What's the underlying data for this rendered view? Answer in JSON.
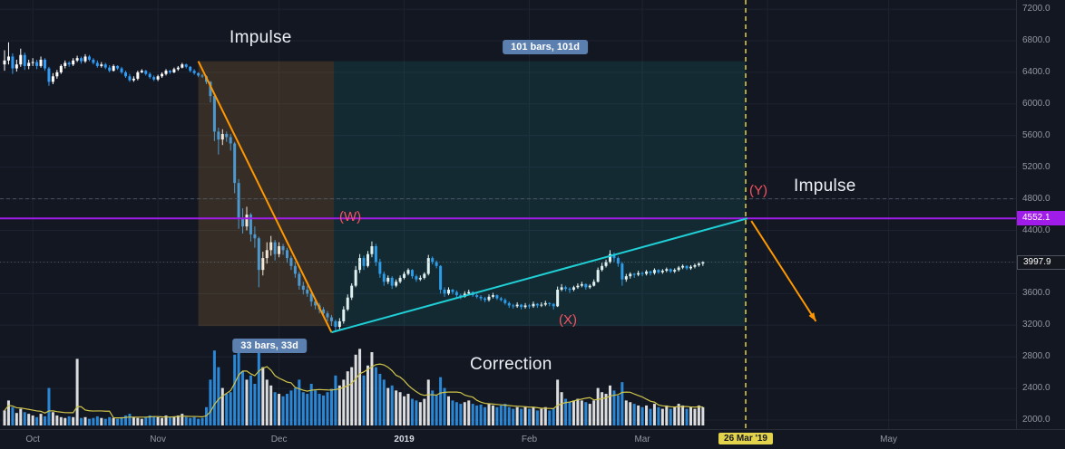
{
  "annotations": {
    "impulse_top": "Impulse",
    "impulse_right": "Impulse",
    "correction": "Correction",
    "wave_w": "(W)",
    "wave_x": "(X)",
    "wave_y": "(Y)",
    "bars_101": "101 bars, 101d",
    "bars_33": "33 bars, 33d",
    "date_marker": "26 Mar '19",
    "price_marker": "4552.1",
    "last_price": "3997.9"
  },
  "chart_data": {
    "type": "candlestick",
    "ylim": [
      2000,
      7200
    ],
    "price_ticks": [
      7200,
      6800,
      6400,
      6000,
      5600,
      5200,
      4800,
      4400,
      3600,
      3200,
      2800,
      2400,
      2000
    ],
    "time_ticks": [
      {
        "label": "Oct",
        "i": 7
      },
      {
        "label": "Nov",
        "i": 38
      },
      {
        "label": "Dec",
        "i": 68
      },
      {
        "label": "2019",
        "i": 99,
        "strong": true
      },
      {
        "label": "Feb",
        "i": 130
      },
      {
        "label": "Mar",
        "i": 158
      },
      {
        "label": "May",
        "i": 219
      }
    ],
    "time_grid_indices": [
      7,
      38,
      68,
      99,
      130,
      158,
      189,
      219
    ],
    "candles": [
      [
        6500,
        6680,
        6420,
        6550
      ],
      [
        6550,
        6780,
        6500,
        6600
      ],
      [
        6600,
        6640,
        6380,
        6450
      ],
      [
        6450,
        6560,
        6410,
        6500
      ],
      [
        6500,
        6700,
        6470,
        6620
      ],
      [
        6620,
        6650,
        6430,
        6480
      ],
      [
        6480,
        6560,
        6440,
        6520
      ],
      [
        6520,
        6580,
        6480,
        6530
      ],
      [
        6530,
        6560,
        6440,
        6480
      ],
      [
        6480,
        6600,
        6460,
        6560
      ],
      [
        6560,
        6580,
        6420,
        6450
      ],
      [
        6450,
        6470,
        6230,
        6280
      ],
      [
        6280,
        6390,
        6250,
        6350
      ],
      [
        6350,
        6430,
        6320,
        6400
      ],
      [
        6400,
        6500,
        6380,
        6480
      ],
      [
        6480,
        6550,
        6450,
        6520
      ],
      [
        6520,
        6540,
        6470,
        6500
      ],
      [
        6500,
        6580,
        6480,
        6550
      ],
      [
        6550,
        6610,
        6530,
        6580
      ],
      [
        6580,
        6600,
        6510,
        6540
      ],
      [
        6540,
        6630,
        6520,
        6600
      ],
      [
        6600,
        6620,
        6540,
        6560
      ],
      [
        6560,
        6580,
        6500,
        6520
      ],
      [
        6520,
        6550,
        6460,
        6480
      ],
      [
        6480,
        6530,
        6460,
        6500
      ],
      [
        6500,
        6520,
        6440,
        6460
      ],
      [
        6460,
        6490,
        6400,
        6420
      ],
      [
        6420,
        6500,
        6410,
        6480
      ],
      [
        6480,
        6490,
        6430,
        6450
      ],
      [
        6450,
        6470,
        6380,
        6400
      ],
      [
        6400,
        6420,
        6330,
        6350
      ],
      [
        6350,
        6380,
        6280,
        6300
      ],
      [
        6300,
        6350,
        6280,
        6320
      ],
      [
        6320,
        6420,
        6300,
        6400
      ],
      [
        6400,
        6440,
        6390,
        6420
      ],
      [
        6420,
        6430,
        6360,
        6380
      ],
      [
        6380,
        6400,
        6320,
        6340
      ],
      [
        6340,
        6360,
        6290,
        6310
      ],
      [
        6310,
        6370,
        6290,
        6350
      ],
      [
        6350,
        6400,
        6330,
        6380
      ],
      [
        6380,
        6440,
        6360,
        6420
      ],
      [
        6420,
        6430,
        6380,
        6400
      ],
      [
        6400,
        6460,
        6390,
        6440
      ],
      [
        6440,
        6480,
        6420,
        6460
      ],
      [
        6460,
        6520,
        6450,
        6500
      ],
      [
        6500,
        6510,
        6450,
        6470
      ],
      [
        6470,
        6480,
        6400,
        6420
      ],
      [
        6420,
        6440,
        6370,
        6390
      ],
      [
        6390,
        6400,
        6340,
        6360
      ],
      [
        6360,
        6380,
        6330,
        6350
      ],
      [
        6350,
        6360,
        6250,
        6280
      ],
      [
        6280,
        6290,
        6020,
        6100
      ],
      [
        6100,
        6110,
        5530,
        5650
      ],
      [
        5650,
        5700,
        5360,
        5550
      ],
      [
        5550,
        5680,
        5480,
        5620
      ],
      [
        5620,
        5650,
        5520,
        5580
      ],
      [
        5580,
        5620,
        5410,
        5500
      ],
      [
        5500,
        5520,
        4870,
        5000
      ],
      [
        5000,
        5050,
        4420,
        4550
      ],
      [
        4550,
        4680,
        4360,
        4450
      ],
      [
        4450,
        4700,
        4400,
        4600
      ],
      [
        4600,
        4620,
        4260,
        4350
      ],
      [
        4350,
        4450,
        4180,
        4300
      ],
      [
        4300,
        4320,
        3680,
        3900
      ],
      [
        3900,
        4130,
        3830,
        4050
      ],
      [
        4050,
        4250,
        3980,
        4150
      ],
      [
        4150,
        4330,
        4080,
        4250
      ],
      [
        4250,
        4280,
        4020,
        4100
      ],
      [
        4100,
        4250,
        4060,
        4200
      ],
      [
        4200,
        4230,
        4090,
        4150
      ],
      [
        4150,
        4180,
        3990,
        4050
      ],
      [
        4050,
        4080,
        3900,
        3950
      ],
      [
        3950,
        4000,
        3800,
        3850
      ],
      [
        3850,
        3880,
        3650,
        3700
      ],
      [
        3700,
        3750,
        3590,
        3650
      ],
      [
        3650,
        3700,
        3560,
        3600
      ],
      [
        3600,
        3620,
        3440,
        3500
      ],
      [
        3500,
        3540,
        3400,
        3450
      ],
      [
        3450,
        3480,
        3350,
        3400
      ],
      [
        3400,
        3430,
        3300,
        3350
      ],
      [
        3350,
        3380,
        3250,
        3300
      ],
      [
        3300,
        3330,
        3190,
        3250
      ],
      [
        3250,
        3270,
        3120,
        3180
      ],
      [
        3180,
        3290,
        3150,
        3250
      ],
      [
        3250,
        3440,
        3220,
        3400
      ],
      [
        3400,
        3590,
        3380,
        3550
      ],
      [
        3550,
        3730,
        3520,
        3700
      ],
      [
        3700,
        3950,
        3680,
        3900
      ],
      [
        3900,
        4100,
        3860,
        4050
      ],
      [
        4050,
        4080,
        3900,
        3950
      ],
      [
        3950,
        4140,
        3930,
        4100
      ],
      [
        4100,
        4260,
        4060,
        4200
      ],
      [
        4200,
        4230,
        3950,
        4000
      ],
      [
        4000,
        4040,
        3800,
        3850
      ],
      [
        3850,
        3880,
        3700,
        3750
      ],
      [
        3750,
        3830,
        3720,
        3800
      ],
      [
        3800,
        3820,
        3660,
        3700
      ],
      [
        3700,
        3780,
        3680,
        3750
      ],
      [
        3750,
        3830,
        3730,
        3800
      ],
      [
        3800,
        3880,
        3780,
        3850
      ],
      [
        3850,
        3920,
        3830,
        3900
      ],
      [
        3900,
        3910,
        3790,
        3820
      ],
      [
        3820,
        3840,
        3750,
        3780
      ],
      [
        3780,
        3830,
        3760,
        3800
      ],
      [
        3800,
        3870,
        3780,
        3850
      ],
      [
        3850,
        4090,
        3830,
        4050
      ],
      [
        4050,
        4070,
        3970,
        4000
      ],
      [
        4000,
        4020,
        3920,
        3950
      ],
      [
        3950,
        3960,
        3600,
        3650
      ],
      [
        3650,
        3680,
        3560,
        3600
      ],
      [
        3600,
        3680,
        3580,
        3650
      ],
      [
        3650,
        3660,
        3590,
        3620
      ],
      [
        3620,
        3640,
        3550,
        3580
      ],
      [
        3580,
        3600,
        3530,
        3560
      ],
      [
        3560,
        3630,
        3550,
        3600
      ],
      [
        3600,
        3650,
        3580,
        3620
      ],
      [
        3620,
        3630,
        3560,
        3580
      ],
      [
        3580,
        3600,
        3540,
        3560
      ],
      [
        3560,
        3580,
        3510,
        3540
      ],
      [
        3540,
        3560,
        3490,
        3520
      ],
      [
        3520,
        3590,
        3500,
        3560
      ],
      [
        3560,
        3610,
        3540,
        3580
      ],
      [
        3580,
        3590,
        3520,
        3540
      ],
      [
        3540,
        3560,
        3500,
        3520
      ],
      [
        3520,
        3540,
        3460,
        3480
      ],
      [
        3480,
        3500,
        3420,
        3450
      ],
      [
        3450,
        3470,
        3410,
        3440
      ],
      [
        3440,
        3490,
        3420,
        3460
      ],
      [
        3460,
        3470,
        3400,
        3430
      ],
      [
        3430,
        3480,
        3410,
        3450
      ],
      [
        3450,
        3470,
        3410,
        3440
      ],
      [
        3440,
        3500,
        3420,
        3470
      ],
      [
        3470,
        3480,
        3420,
        3450
      ],
      [
        3450,
        3490,
        3430,
        3460
      ],
      [
        3460,
        3510,
        3440,
        3480
      ],
      [
        3480,
        3490,
        3440,
        3470
      ],
      [
        3470,
        3480,
        3400,
        3440
      ],
      [
        3440,
        3690,
        3430,
        3650
      ],
      [
        3650,
        3720,
        3630,
        3680
      ],
      [
        3680,
        3700,
        3630,
        3660
      ],
      [
        3660,
        3680,
        3610,
        3650
      ],
      [
        3650,
        3700,
        3630,
        3680
      ],
      [
        3680,
        3730,
        3660,
        3700
      ],
      [
        3700,
        3750,
        3680,
        3720
      ],
      [
        3720,
        3730,
        3650,
        3680
      ],
      [
        3680,
        3720,
        3660,
        3700
      ],
      [
        3700,
        3780,
        3690,
        3750
      ],
      [
        3750,
        3930,
        3740,
        3900
      ],
      [
        3900,
        3990,
        3880,
        3950
      ],
      [
        3950,
        4030,
        3930,
        4000
      ],
      [
        4000,
        4150,
        3980,
        4100
      ],
      [
        4100,
        4120,
        4000,
        4050
      ],
      [
        4050,
        4070,
        3940,
        3980
      ],
      [
        3980,
        4000,
        3700,
        3780
      ],
      [
        3780,
        3850,
        3750,
        3820
      ],
      [
        3820,
        3870,
        3790,
        3850
      ],
      [
        3850,
        3860,
        3800,
        3840
      ],
      [
        3840,
        3890,
        3820,
        3860
      ],
      [
        3860,
        3880,
        3820,
        3850
      ],
      [
        3850,
        3900,
        3830,
        3880
      ],
      [
        3880,
        3890,
        3830,
        3860
      ],
      [
        3860,
        3920,
        3840,
        3900
      ],
      [
        3900,
        3910,
        3850,
        3870
      ],
      [
        3870,
        3910,
        3850,
        3890
      ],
      [
        3890,
        3930,
        3870,
        3910
      ],
      [
        3910,
        3920,
        3860,
        3880
      ],
      [
        3880,
        3920,
        3860,
        3900
      ],
      [
        3900,
        3950,
        3880,
        3930
      ],
      [
        3930,
        3970,
        3910,
        3950
      ],
      [
        3950,
        3960,
        3900,
        3920
      ],
      [
        3920,
        3960,
        3900,
        3940
      ],
      [
        3940,
        3980,
        3920,
        3960
      ],
      [
        3960,
        4000,
        3940,
        3980
      ],
      [
        3980,
        4010,
        3950,
        3997.9
      ]
    ],
    "volume": [
      18,
      30,
      22,
      15,
      20,
      16,
      14,
      12,
      10,
      14,
      11,
      45,
      16,
      12,
      10,
      9,
      11,
      10,
      80,
      9,
      10,
      8,
      9,
      11,
      9,
      8,
      10,
      9,
      8,
      10,
      12,
      14,
      10,
      9,
      8,
      10,
      12,
      11,
      10,
      9,
      12,
      10,
      11,
      12,
      14,
      10,
      9,
      10,
      8,
      9,
      22,
      55,
      90,
      70,
      45,
      38,
      40,
      85,
      100,
      65,
      55,
      60,
      50,
      95,
      70,
      55,
      48,
      40,
      38,
      35,
      38,
      42,
      45,
      55,
      40,
      38,
      50,
      42,
      38,
      36,
      40,
      44,
      60,
      48,
      55,
      65,
      70,
      85,
      92,
      60,
      72,
      88,
      70,
      62,
      55,
      45,
      48,
      42,
      40,
      35,
      38,
      32,
      30,
      28,
      32,
      55,
      42,
      36,
      58,
      45,
      35,
      30,
      28,
      26,
      28,
      30,
      26,
      24,
      25,
      22,
      26,
      24,
      22,
      24,
      26,
      22,
      20,
      22,
      20,
      22,
      20,
      22,
      18,
      20,
      22,
      18,
      20,
      55,
      40,
      32,
      28,
      30,
      32,
      30,
      28,
      26,
      30,
      45,
      40,
      38,
      48,
      42,
      36,
      52,
      30,
      28,
      26,
      24,
      22,
      24,
      20,
      26,
      22,
      20,
      24,
      20,
      22,
      26,
      24,
      20,
      22,
      20,
      24,
      22
    ],
    "drawings": {
      "impulse_line": {
        "from": {
          "i": 48,
          "p": 6540
        },
        "to": {
          "i": 81,
          "p": 3110
        }
      },
      "correction_line": {
        "from": {
          "i": 81,
          "p": 3110
        },
        "to": {
          "i": 184,
          "p": 4552
        }
      },
      "projection_arrow": {
        "from": {
          "i": 185,
          "p": 4520
        },
        "to": {
          "i": 201,
          "p": 3250
        }
      },
      "hline_price": 4552.1,
      "dashed_level": 4800,
      "last_price_level": 3997.9,
      "vline_index": 183.6,
      "box_brown": {
        "i1": 48,
        "i2": 81.6,
        "p_top": 6540,
        "p_bottom": 3190
      },
      "box_teal": {
        "i1": 81.6,
        "i2": 183.6,
        "p_top": 6540,
        "p_bottom": 3190
      }
    },
    "colors": {
      "bg": "#131722",
      "up": "#ffffff",
      "down": "#2f9bf5",
      "orange": "#ff9800",
      "cyan": "#1fd0d6",
      "purple": "#a01ce8",
      "yellow": "#e3d24b",
      "wave_red": "#f7525f",
      "badge_blue": "#5b7fae",
      "vol_ma": "#cfc44a",
      "box_brown": "rgba(196,141,56,0.20)",
      "box_teal": "rgba(27,163,156,0.14)"
    }
  }
}
